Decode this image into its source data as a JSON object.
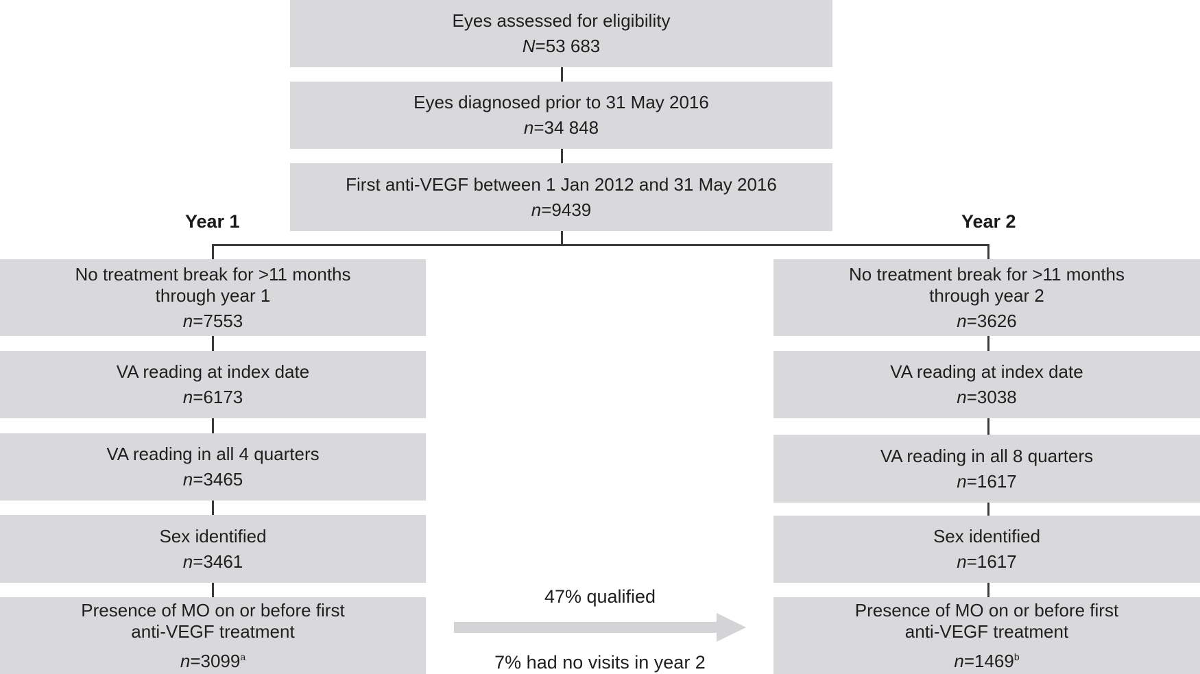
{
  "top": {
    "eligibility": {
      "title": "Eyes assessed for eligibility",
      "count_prefix": "N",
      "count_value": "=53 683"
    },
    "diagnosed": {
      "title": "Eyes diagnosed prior to 31 May 2016",
      "count_prefix": "n",
      "count_value": "=34 848"
    },
    "first_antivegf": {
      "title": "First anti-VEGF between 1 Jan 2012 and 31 May 2016",
      "count_prefix": "n",
      "count_value": "=9439"
    }
  },
  "year1": {
    "label": "Year 1",
    "boxes": [
      {
        "title_l1": "No treatment break for >11 months",
        "title_l2": "through year 1",
        "count_prefix": "n",
        "count_value": "=7553"
      },
      {
        "title_l1": "VA reading at index date",
        "count_prefix": "n",
        "count_value": "=6173"
      },
      {
        "title_l1": "VA reading in all 4 quarters",
        "count_prefix": "n",
        "count_value": "=3465"
      },
      {
        "title_l1": "Sex identified",
        "count_prefix": "n",
        "count_value": "=3461"
      },
      {
        "title_l1": "Presence of MO on or before first",
        "title_l2": "anti-VEGF treatment",
        "count_prefix": "n",
        "count_value": "=3099",
        "superscript": "a"
      }
    ]
  },
  "year2": {
    "label": "Year 2",
    "boxes": [
      {
        "title_l1": "No treatment break for >11 months",
        "title_l2": "through year 2",
        "count_prefix": "n",
        "count_value": "=3626"
      },
      {
        "title_l1": "VA reading at index date",
        "count_prefix": "n",
        "count_value": "=3038"
      },
      {
        "title_l1": "VA reading in all 8 quarters",
        "count_prefix": "n",
        "count_value": "=1617"
      },
      {
        "title_l1": "Sex identified",
        "count_prefix": "n",
        "count_value": "=1617"
      },
      {
        "title_l1": "Presence of MO on or before first",
        "title_l2": "anti-VEGF treatment",
        "count_prefix": "n",
        "count_value": "=1469",
        "superscript": "b"
      }
    ]
  },
  "transition": {
    "above_arrow": "47% qualified",
    "below_arrow": "7% had no visits in year 2",
    "arrow_color": "#d4d4d6"
  },
  "colors": {
    "box_fill": "#d9d9db",
    "connector": "#3a3a3a"
  }
}
